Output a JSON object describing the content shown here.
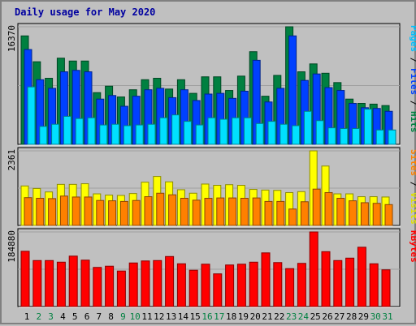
{
  "title": "Daily usage for May 2020",
  "colors": {
    "hits": "#008040",
    "files": "#0040ff",
    "pages": "#00e0ff",
    "visits": "#ffff00",
    "sites": "#ff8000",
    "kbytes": "#ff0000",
    "weekday_label": "#000000",
    "weekend_label": "#008040",
    "panel_bg": "#c0c0c0"
  },
  "chart_data": [
    {
      "type": "bar",
      "panel": "hits-files-pages",
      "ylim_label": "16370",
      "right_labels": [
        {
          "text": "Pages",
          "color": "#00c0ff"
        },
        {
          "text": " / ",
          "color": "#000000"
        },
        {
          "text": "Files",
          "color": "#0040ff"
        },
        {
          "text": " / ",
          "color": "#000000"
        },
        {
          "text": "Hits",
          "color": "#008040"
        }
      ],
      "categories": [
        "1",
        "2",
        "3",
        "4",
        "5",
        "6",
        "7",
        "8",
        "9",
        "10",
        "11",
        "12",
        "13",
        "14",
        "15",
        "16",
        "17",
        "18",
        "19",
        "20",
        "21",
        "22",
        "23",
        "24",
        "25",
        "26",
        "27",
        "28",
        "29",
        "30",
        "31"
      ],
      "weekend": [
        false,
        true,
        true,
        false,
        false,
        false,
        false,
        false,
        true,
        true,
        false,
        false,
        false,
        false,
        false,
        true,
        true,
        false,
        false,
        false,
        false,
        false,
        true,
        true,
        false,
        false,
        false,
        false,
        false,
        true,
        true
      ],
      "ylim": [
        0,
        16370
      ],
      "series": [
        {
          "name": "Hits",
          "values": [
            15100,
            11500,
            9200,
            12000,
            11600,
            11600,
            7200,
            8100,
            6600,
            7600,
            9000,
            9200,
            7700,
            9000,
            7100,
            9400,
            9400,
            7500,
            9500,
            12900,
            6700,
            9600,
            16370,
            10100,
            11200,
            9900,
            8600,
            6300,
            5700,
            5600,
            5400
          ]
        },
        {
          "name": "Files",
          "values": [
            13200,
            9000,
            7800,
            10100,
            10300,
            10100,
            6300,
            6800,
            5300,
            6700,
            7600,
            7800,
            6500,
            7600,
            6100,
            7000,
            7100,
            6400,
            7400,
            11700,
            5900,
            7800,
            15100,
            8900,
            9800,
            7900,
            7500,
            5700,
            5100,
            5000,
            4600
          ]
        },
        {
          "name": "Pages",
          "values": [
            8000,
            2500,
            2800,
            3900,
            3600,
            3700,
            2700,
            2800,
            2600,
            2700,
            2800,
            3700,
            4100,
            3200,
            2700,
            3700,
            3500,
            3700,
            3700,
            2900,
            3200,
            2800,
            2600,
            4600,
            3300,
            2300,
            2200,
            2200,
            4900,
            2000,
            2000
          ]
        }
      ]
    },
    {
      "type": "bar",
      "panel": "visits-sites",
      "ylim_label": "2361",
      "right_labels": [
        {
          "text": "Sites",
          "color": "#ff8000"
        },
        {
          "text": " / ",
          "color": "#000000"
        },
        {
          "text": "Visits",
          "color": "#e0e000"
        }
      ],
      "categories": [
        "1",
        "2",
        "3",
        "4",
        "5",
        "6",
        "7",
        "8",
        "9",
        "10",
        "11",
        "12",
        "13",
        "14",
        "15",
        "16",
        "17",
        "18",
        "19",
        "20",
        "21",
        "22",
        "23",
        "24",
        "25",
        "26",
        "27",
        "28",
        "29",
        "30",
        "31"
      ],
      "ylim": [
        0,
        2361
      ],
      "series": [
        {
          "name": "Visits",
          "values": [
            1250,
            1170,
            1060,
            1300,
            1300,
            1320,
            1000,
            960,
            950,
            1010,
            1370,
            1550,
            1380,
            1130,
            1020,
            1310,
            1270,
            1290,
            1270,
            1140,
            1120,
            1110,
            1040,
            1070,
            2361,
            1880,
            1000,
            1000,
            910,
            910,
            900
          ]
        },
        {
          "name": "Sites",
          "values": [
            880,
            860,
            850,
            930,
            900,
            900,
            790,
            780,
            760,
            790,
            910,
            1020,
            970,
            860,
            800,
            860,
            870,
            870,
            860,
            870,
            760,
            760,
            520,
            750,
            1150,
            1040,
            860,
            780,
            720,
            700,
            660
          ]
        }
      ]
    },
    {
      "type": "bar",
      "panel": "kbytes",
      "ylim_label": "184880",
      "right_labels": [
        {
          "text": "KBytes",
          "color": "#ff0000"
        }
      ],
      "categories": [
        "1",
        "2",
        "3",
        "4",
        "5",
        "6",
        "7",
        "8",
        "9",
        "10",
        "11",
        "12",
        "13",
        "14",
        "15",
        "16",
        "17",
        "18",
        "19",
        "20",
        "21",
        "22",
        "23",
        "24",
        "25",
        "26",
        "27",
        "28",
        "29",
        "30",
        "31"
      ],
      "ylim": [
        0,
        184880
      ],
      "series": [
        {
          "name": "KBytes",
          "values": [
            137000,
            114000,
            114000,
            110000,
            125000,
            115000,
            97000,
            100000,
            88000,
            108000,
            113000,
            114000,
            124000,
            106000,
            90000,
            105000,
            81000,
            103000,
            105000,
            110000,
            133000,
            109000,
            94000,
            107000,
            184880,
            136000,
            114000,
            120000,
            147000,
            106000,
            91000
          ]
        }
      ]
    }
  ]
}
